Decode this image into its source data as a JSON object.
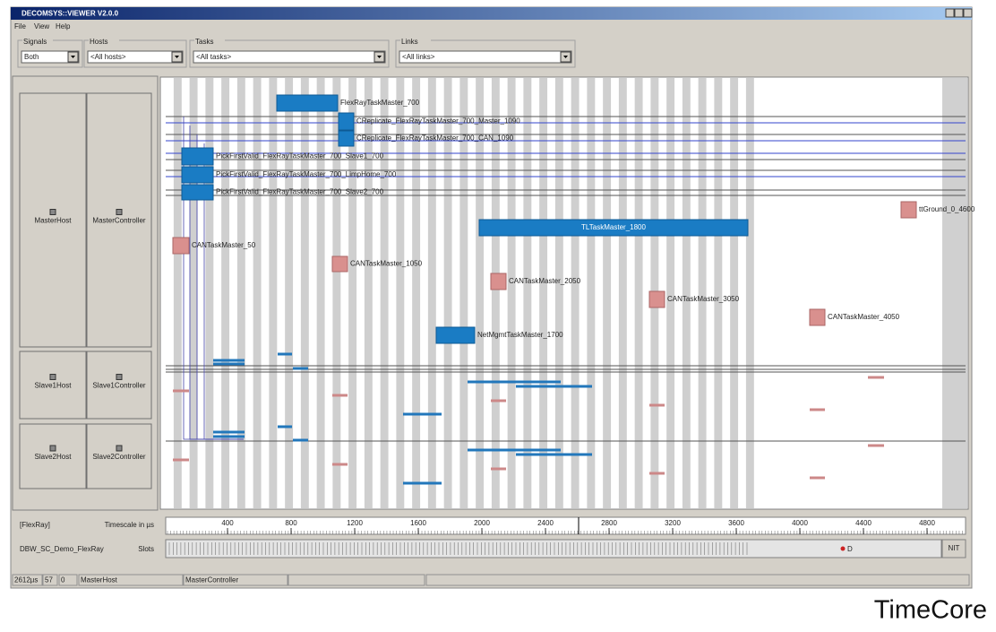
{
  "window": {
    "title": "DECOMSYS::VIEWER V2.0.0"
  },
  "menu": [
    "File",
    "View",
    "Help"
  ],
  "filters": [
    {
      "label": "Signals",
      "value": "Both"
    },
    {
      "label": "Hosts",
      "value": "<All hosts>"
    },
    {
      "label": "Tasks",
      "value": "<All tasks>"
    },
    {
      "label": "Links",
      "value": "<All links>"
    }
  ],
  "hosts": [
    "MasterHost",
    "MasterController",
    "Slave1Host",
    "Slave1Controller",
    "Slave2Host",
    "Slave2Controller"
  ],
  "tasks": [
    "FlexRayTaskMaster_700",
    "CReplicate_FlexRayTaskMaster_700_Master_1090",
    "CReplicate_FlexRayTaskMaster_700_CAN_1090",
    "PickFirstValid_FlexRayTaskMaster_700_Slave1_700",
    "PickFirstValid_FlexRayTaskMaster_700_LimpHome_700",
    "PickFirstValid_FlexRayTaskMaster_700_Slave2_700",
    "CANTaskMaster_50",
    "CANTaskMaster_1050",
    "CANTaskMaster_2050",
    "CANTaskMaster_3050",
    "CANTaskMaster_4050",
    "TLTaskMaster_1800",
    "NetMgmtTaskMaster_1700",
    "ttGround_0_4600"
  ],
  "timeline": {
    "channel": "[FlexRay]",
    "timescale_label": "Timescale in µs",
    "ticks": [
      400,
      800,
      1200,
      1600,
      2000,
      2400,
      2800,
      3200,
      3600,
      4000,
      4400,
      4800
    ],
    "cluster": "DBW_SC_Demo_FlexRay",
    "slots_label": "Slots",
    "marker": "D",
    "end_slot": "NIT"
  },
  "status_bar": [
    "2612µs",
    "57",
    "0",
    "MasterHost",
    "MasterController"
  ],
  "watermark": "TimeCore"
}
